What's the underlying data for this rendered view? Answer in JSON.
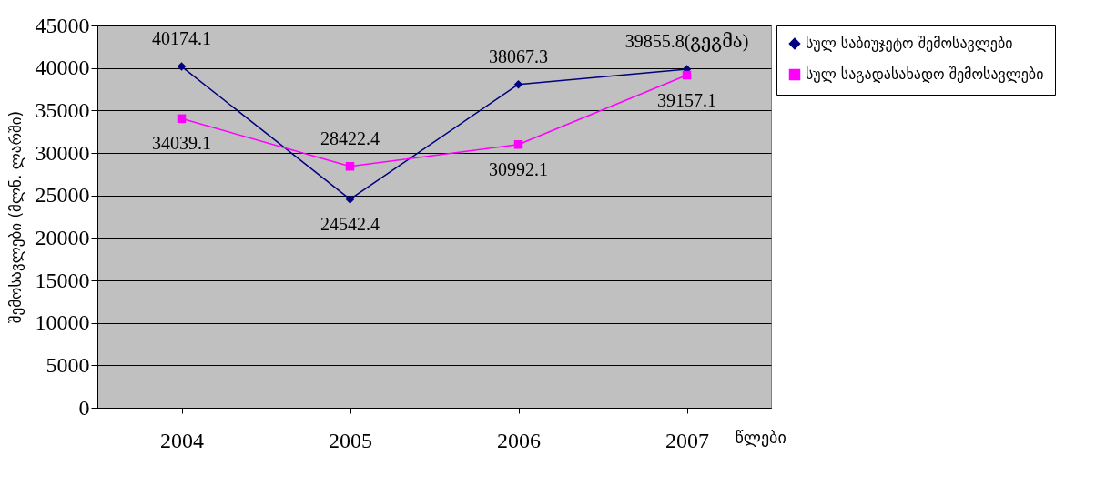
{
  "chart_data": {
    "type": "line",
    "xlabel": "წლები",
    "ylabel": "შემოსავლები (მლნ. ლარში)",
    "categories": [
      "2004",
      "2005",
      "2006",
      "2007"
    ],
    "series": [
      {
        "name": "სულ საბიუჯეტო შემოსავლები",
        "color": "#000080",
        "marker": "diamond",
        "values": [
          40174.1,
          24542.4,
          38067.3,
          39855.8
        ],
        "value_labels": [
          "40174.1",
          "24542.4",
          "38067.3",
          "39855.8(გეგმა)"
        ]
      },
      {
        "name": "სულ საგადასახადო შემოსავლები",
        "color": "#ff00ff",
        "marker": "square",
        "values": [
          34039.1,
          28422.4,
          30992.1,
          39157.1
        ],
        "value_labels": [
          "34039.1",
          "28422.4",
          "30992.1",
          "39157.1"
        ]
      }
    ],
    "ylim": [
      0,
      45000
    ],
    "yticks": [
      0,
      5000,
      10000,
      15000,
      20000,
      25000,
      30000,
      35000,
      40000,
      45000
    ],
    "grid": "y",
    "legend": "top right"
  }
}
